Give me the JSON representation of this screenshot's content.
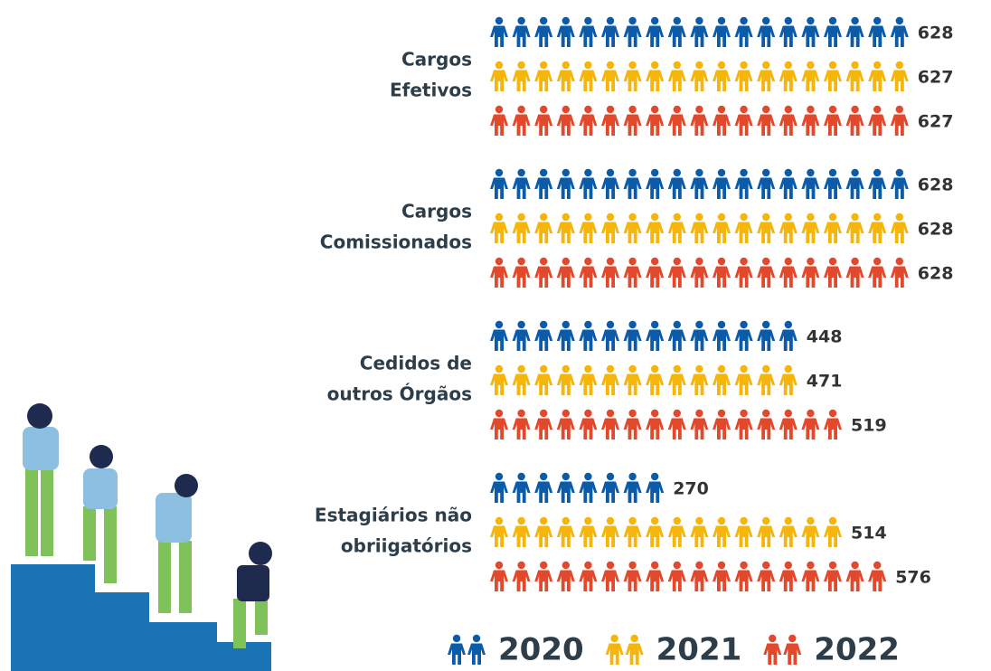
{
  "chart_data": {
    "type": "pictogram",
    "categories": [
      [
        "Cargos",
        "Efetivos"
      ],
      [
        "Cargos",
        "Comissionados"
      ],
      [
        "Cedidos de",
        "outros Órgãos"
      ],
      [
        "Estagiários não",
        "obriigatórios"
      ]
    ],
    "series": [
      {
        "name": "2020",
        "color": "#0b5ba8",
        "values": [
          628,
          628,
          448,
          270
        ]
      },
      {
        "name": "2021",
        "color": "#f5b50a",
        "values": [
          627,
          628,
          471,
          514
        ]
      },
      {
        "name": "2022",
        "color": "#e2482c",
        "values": [
          627,
          628,
          519,
          576
        ]
      }
    ]
  }
}
